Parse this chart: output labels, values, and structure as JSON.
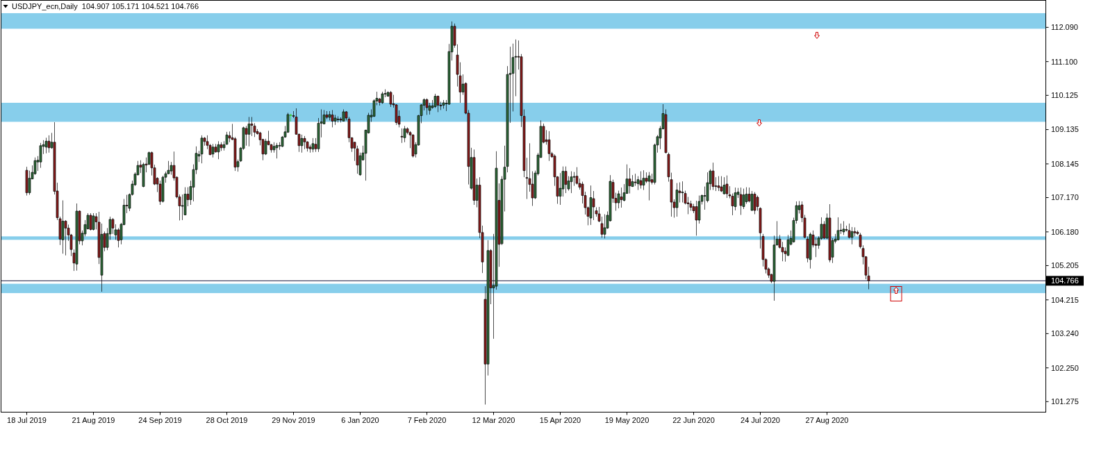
{
  "chart_data": {
    "type": "candlestick",
    "title": "USDJPY_ecn,Daily  104.907 105.171 104.521 104.766",
    "categories": [
      "18 Jul 2019",
      null,
      null,
      null,
      null,
      null,
      null,
      null,
      null,
      null,
      null,
      null,
      null,
      null,
      null,
      null,
      null,
      null,
      null,
      null,
      null,
      null,
      null,
      null,
      "21 Aug 2019",
      null,
      null,
      null,
      null,
      null,
      null,
      null,
      null,
      null,
      null,
      null,
      null,
      null,
      null,
      null,
      null,
      null,
      null,
      null,
      null,
      null,
      null,
      null,
      "24 Sep 2019",
      null,
      null,
      null,
      null,
      null,
      null,
      null,
      null,
      null,
      null,
      null,
      null,
      null,
      null,
      null,
      null,
      null,
      null,
      null,
      null,
      null,
      null,
      null,
      "28 Oct 2019",
      null,
      null,
      null,
      null,
      null,
      null,
      null,
      null,
      null,
      null,
      null,
      null,
      null,
      null,
      null,
      null,
      null,
      null,
      null,
      null,
      null,
      null,
      null,
      "29 Nov 2019",
      null,
      null,
      null,
      null,
      null,
      null,
      null,
      null,
      null,
      null,
      null,
      null,
      null,
      null,
      null,
      null,
      null,
      null,
      null,
      null,
      null,
      null,
      null,
      "6 Jan 2020",
      null,
      null,
      null,
      null,
      null,
      null,
      null,
      null,
      null,
      null,
      null,
      null,
      null,
      null,
      null,
      null,
      null,
      null,
      null,
      null,
      null,
      null,
      null,
      "7 Feb 2020",
      null,
      null,
      null,
      null,
      null,
      null,
      null,
      null,
      null,
      null,
      null,
      null,
      null,
      null,
      null,
      null,
      null,
      null,
      null,
      null,
      null,
      null,
      null,
      "12 Mar 2020",
      null,
      null,
      null,
      null,
      null,
      null,
      null,
      null,
      null,
      null,
      null,
      null,
      null,
      null,
      null,
      null,
      null,
      null,
      null,
      null,
      null,
      null,
      null,
      "15 Apr 2020",
      null,
      null,
      null,
      null,
      null,
      null,
      null,
      null,
      null,
      null,
      null,
      null,
      null,
      null,
      null,
      null,
      null,
      null,
      null,
      null,
      null,
      null,
      null,
      "19 May 2020",
      null,
      null,
      null,
      null,
      null,
      null,
      null,
      null,
      null,
      null,
      null,
      null,
      null,
      null,
      null,
      null,
      null,
      null,
      null,
      null,
      null,
      null,
      null,
      "22 Jun 2020",
      null,
      null,
      null,
      null,
      null,
      null,
      null,
      null,
      null,
      null,
      null,
      null,
      null,
      null,
      null,
      null,
      null,
      null,
      null,
      null,
      null,
      null,
      null,
      "24 Jul 2020",
      null,
      null,
      null,
      null,
      null,
      null,
      null,
      null,
      null,
      null,
      null,
      null,
      null,
      null,
      null,
      null,
      null,
      null,
      null,
      null,
      null,
      null,
      null,
      "27 Aug 2020",
      null,
      null,
      null,
      null,
      null,
      null,
      null,
      null,
      null,
      null,
      null,
      null,
      null,
      null,
      null,
      null,
      null,
      null,
      null,
      null,
      null,
      null,
      null,
      null,
      null,
      null,
      null,
      null,
      null,
      null,
      null,
      null,
      null,
      null,
      null,
      null,
      null,
      null,
      null,
      null,
      null,
      null,
      null,
      null,
      null,
      null,
      null,
      null,
      null,
      null,
      null,
      null,
      null,
      null,
      null,
      null,
      null,
      null,
      null,
      null,
      null,
      null,
      null,
      null,
      null,
      null,
      null,
      null,
      null,
      null,
      null,
      null,
      null,
      null,
      null,
      null,
      null,
      null
    ],
    "ohlc": [
      [
        107.96,
        108.06,
        107.23,
        107.31
      ],
      [
        107.31,
        107.95,
        107.25,
        107.73
      ],
      [
        107.71,
        108.1,
        107.7,
        107.9
      ],
      [
        107.86,
        108.33,
        107.83,
        108.24
      ],
      [
        108.2,
        108.37,
        107.94,
        108.25
      ],
      [
        108.2,
        108.75,
        108.03,
        108.67
      ],
      [
        108.65,
        108.83,
        108.43,
        108.7
      ],
      [
        108.63,
        108.9,
        108.45,
        108.8
      ],
      [
        108.8,
        108.97,
        108.47,
        108.61
      ],
      [
        108.61,
        109.04,
        108.58,
        108.77
      ],
      [
        108.77,
        109.35,
        107.26,
        107.35
      ],
      [
        107.36,
        107.6,
        106.52,
        106.59
      ],
      [
        106.56,
        106.62,
        105.8,
        105.97
      ],
      [
        105.95,
        107.09,
        105.55,
        106.49
      ],
      [
        106.49,
        106.52,
        105.5,
        106.29
      ],
      [
        106.29,
        106.39,
        105.92,
        106.09
      ],
      [
        106.09,
        106.12,
        105.48,
        105.67
      ],
      [
        105.57,
        105.67,
        105.05,
        105.28
      ],
      [
        105.25,
        107.0,
        105.06,
        106.78
      ],
      [
        106.78,
        106.8,
        105.82,
        105.92
      ],
      [
        105.92,
        106.22,
        105.79,
        106.14
      ],
      [
        106.12,
        106.52,
        106.05,
        106.39
      ],
      [
        106.27,
        106.72,
        106.25,
        106.66
      ],
      [
        106.66,
        106.72,
        106.22,
        106.25
      ],
      [
        106.25,
        106.72,
        106.22,
        106.64
      ],
      [
        106.62,
        106.72,
        106.25,
        106.47
      ],
      [
        106.46,
        106.76,
        105.25,
        105.44
      ],
      [
        104.93,
        106.42,
        104.45,
        106.11
      ],
      [
        106.13,
        106.19,
        105.62,
        105.73
      ],
      [
        105.73,
        106.29,
        105.65,
        106.13
      ],
      [
        106.12,
        106.62,
        105.95,
        106.54
      ],
      [
        106.54,
        106.58,
        106.12,
        106.29
      ],
      [
        106.09,
        106.4,
        105.95,
        106.24
      ],
      [
        106.24,
        106.29,
        105.73,
        105.93
      ],
      [
        105.95,
        106.44,
        105.82,
        106.4
      ],
      [
        106.39,
        107.13,
        106.37,
        106.95
      ],
      [
        106.95,
        107.25,
        106.72,
        106.93
      ],
      [
        106.86,
        107.29,
        106.78,
        107.26
      ],
      [
        107.26,
        107.66,
        107.23,
        107.56
      ],
      [
        107.54,
        107.9,
        107.51,
        107.85
      ],
      [
        107.83,
        108.23,
        107.81,
        108.1
      ],
      [
        108.11,
        108.25,
        107.88,
        108.05
      ],
      [
        107.49,
        108.18,
        107.47,
        108.13
      ],
      [
        108.14,
        108.33,
        107.9,
        108.11
      ],
      [
        108.13,
        108.5,
        108.12,
        108.47
      ],
      [
        108.47,
        108.5,
        107.81,
        108.03
      ],
      [
        108.03,
        108.12,
        107.53,
        107.56
      ],
      [
        107.73,
        107.76,
        107.33,
        107.56
      ],
      [
        107.56,
        107.66,
        106.96,
        107.06
      ],
      [
        107.06,
        107.8,
        107.03,
        107.76
      ],
      [
        107.76,
        107.92,
        107.6,
        107.86
      ],
      [
        107.86,
        108.23,
        107.85,
        107.96
      ],
      [
        107.94,
        108.2,
        107.83,
        108.1
      ],
      [
        108.1,
        108.5,
        107.66,
        107.74
      ],
      [
        107.76,
        107.78,
        107.15,
        107.19
      ],
      [
        107.19,
        107.26,
        106.51,
        106.93
      ],
      [
        106.93,
        107.26,
        106.52,
        106.94
      ],
      [
        106.67,
        107.47,
        106.66,
        107.27
      ],
      [
        107.27,
        107.47,
        106.92,
        107.11
      ],
      [
        107.11,
        107.66,
        106.96,
        107.49
      ],
      [
        107.47,
        108.13,
        107.06,
        107.98
      ],
      [
        107.98,
        108.65,
        107.85,
        108.45
      ],
      [
        108.37,
        108.52,
        108.2,
        108.42
      ],
      [
        108.43,
        108.97,
        108.16,
        108.89
      ],
      [
        108.89,
        108.92,
        108.67,
        108.79
      ],
      [
        108.79,
        108.97,
        108.57,
        108.68
      ],
      [
        108.68,
        108.72,
        108.4,
        108.41
      ],
      [
        108.43,
        108.72,
        108.33,
        108.63
      ],
      [
        108.63,
        108.72,
        108.47,
        108.49
      ],
      [
        108.49,
        108.8,
        108.28,
        108.7
      ],
      [
        108.7,
        108.77,
        108.52,
        108.61
      ],
      [
        108.61,
        108.8,
        108.53,
        108.7
      ],
      [
        108.71,
        109.07,
        108.7,
        108.98
      ],
      [
        108.96,
        109.08,
        108.77,
        108.89
      ],
      [
        108.9,
        109.3,
        108.83,
        108.85
      ],
      [
        108.87,
        108.92,
        107.94,
        108.05
      ],
      [
        108.06,
        108.27,
        107.92,
        108.21
      ],
      [
        108.23,
        108.63,
        108.2,
        108.6
      ],
      [
        108.59,
        109.22,
        108.55,
        109.19
      ],
      [
        109.17,
        109.24,
        108.67,
        109.0
      ],
      [
        109.0,
        109.5,
        108.65,
        109.3
      ],
      [
        109.3,
        109.5,
        108.95,
        109.26
      ],
      [
        109.24,
        109.32,
        108.92,
        109.06
      ],
      [
        109.08,
        109.15,
        108.99,
        109.02
      ],
      [
        109.04,
        109.07,
        108.68,
        108.84
      ],
      [
        108.85,
        108.87,
        108.25,
        108.43
      ],
      [
        108.43,
        108.87,
        108.4,
        108.8
      ],
      [
        108.8,
        109.1,
        108.68,
        108.7
      ],
      [
        108.7,
        108.72,
        108.47,
        108.55
      ],
      [
        108.55,
        108.77,
        108.47,
        108.65
      ],
      [
        108.61,
        108.75,
        108.3,
        108.68
      ],
      [
        108.67,
        108.77,
        108.55,
        108.68
      ],
      [
        108.65,
        108.95,
        108.63,
        108.92
      ],
      [
        108.92,
        109.24,
        108.9,
        109.07
      ],
      [
        109.06,
        109.62,
        109.04,
        109.57
      ],
      [
        109.56,
        109.59,
        109.37,
        109.56
      ],
      [
        109.54,
        109.67,
        109.47,
        109.52
      ],
      [
        109.5,
        109.75,
        108.99,
        109.0
      ],
      [
        109.0,
        109.02,
        108.49,
        108.67
      ],
      [
        108.67,
        108.99,
        108.47,
        108.88
      ],
      [
        108.88,
        108.95,
        108.57,
        108.78
      ],
      [
        108.78,
        108.8,
        108.5,
        108.6
      ],
      [
        108.63,
        108.7,
        108.47,
        108.58
      ],
      [
        108.57,
        108.89,
        108.48,
        108.73
      ],
      [
        108.71,
        108.89,
        108.49,
        108.58
      ],
      [
        108.58,
        109.47,
        108.49,
        109.32
      ],
      [
        109.32,
        109.72,
        108.91,
        109.36
      ],
      [
        109.3,
        109.7,
        109.29,
        109.56
      ],
      [
        109.56,
        109.67,
        109.44,
        109.49
      ],
      [
        109.49,
        109.67,
        109.4,
        109.57
      ],
      [
        109.56,
        109.7,
        109.2,
        109.38
      ],
      [
        109.38,
        109.56,
        109.27,
        109.47
      ],
      [
        109.43,
        109.52,
        109.34,
        109.44
      ],
      [
        109.44,
        109.49,
        109.34,
        109.41
      ],
      [
        109.38,
        109.72,
        109.37,
        109.65
      ],
      [
        109.65,
        109.67,
        109.4,
        109.47
      ],
      [
        109.44,
        109.5,
        108.77,
        108.9
      ],
      [
        108.9,
        108.91,
        108.49,
        108.6
      ],
      [
        108.77,
        108.78,
        108.23,
        108.6
      ],
      [
        108.58,
        108.67,
        107.86,
        108.11
      ],
      [
        107.83,
        108.47,
        107.8,
        108.38
      ],
      [
        108.26,
        108.67,
        108.24,
        108.46
      ],
      [
        108.45,
        109.13,
        107.66,
        109.12
      ],
      [
        109.04,
        109.62,
        109.02,
        109.55
      ],
      [
        109.5,
        109.72,
        109.36,
        109.55
      ],
      [
        109.52,
        110.01,
        109.5,
        109.97
      ],
      [
        109.96,
        110.23,
        109.84,
        110.04
      ],
      [
        110.02,
        110.05,
        109.83,
        109.92
      ],
      [
        109.91,
        110.23,
        109.88,
        110.17
      ],
      [
        110.16,
        110.3,
        110.07,
        110.18
      ],
      [
        110.1,
        110.24,
        110.09,
        110.21
      ],
      [
        110.21,
        110.25,
        109.79,
        109.87
      ],
      [
        109.88,
        110.14,
        109.77,
        109.85
      ],
      [
        109.85,
        109.87,
        109.27,
        109.34
      ],
      [
        109.52,
        109.69,
        109.2,
        109.29
      ],
      [
        108.94,
        109.17,
        108.75,
        108.93
      ],
      [
        108.9,
        109.24,
        108.77,
        109.16
      ],
      [
        109.16,
        109.2,
        109.0,
        109.05
      ],
      [
        109.05,
        109.09,
        108.6,
        108.98
      ],
      [
        108.98,
        109.0,
        108.33,
        108.37
      ],
      [
        108.43,
        108.77,
        108.33,
        108.7
      ],
      [
        108.69,
        109.56,
        108.67,
        109.54
      ],
      [
        109.54,
        109.87,
        109.32,
        109.85
      ],
      [
        109.84,
        110.04,
        109.69,
        110.0
      ],
      [
        110.0,
        110.04,
        109.56,
        109.77
      ],
      [
        109.69,
        109.91,
        109.57,
        109.82
      ],
      [
        109.77,
        109.99,
        109.74,
        109.82
      ],
      [
        109.8,
        110.17,
        109.76,
        110.1
      ],
      [
        110.1,
        110.12,
        109.64,
        109.84
      ],
      [
        109.84,
        109.94,
        109.7,
        109.82
      ],
      [
        109.84,
        109.99,
        109.74,
        109.91
      ],
      [
        109.89,
        109.99,
        109.67,
        109.9
      ],
      [
        109.87,
        111.61,
        109.85,
        111.39
      ],
      [
        111.38,
        112.26,
        111.13,
        112.12
      ],
      [
        112.12,
        112.2,
        111.5,
        111.57
      ],
      [
        111.29,
        111.6,
        110.38,
        110.73
      ],
      [
        110.69,
        111.08,
        109.91,
        110.22
      ],
      [
        110.22,
        110.73,
        110.14,
        110.45
      ],
      [
        110.47,
        110.5,
        109.58,
        109.61
      ],
      [
        109.61,
        109.7,
        107.55,
        108.07
      ],
      [
        107.44,
        108.61,
        107.4,
        108.33
      ],
      [
        108.33,
        108.56,
        106.96,
        107.09
      ],
      [
        107.09,
        107.72,
        106.89,
        107.53
      ],
      [
        107.53,
        107.76,
        106.0,
        106.16
      ],
      [
        106.16,
        106.36,
        104.99,
        105.31
      ],
      [
        104.23,
        104.61,
        101.19,
        102.36
      ],
      [
        102.36,
        105.94,
        102.03,
        105.64
      ],
      [
        105.64,
        105.68,
        104.09,
        104.56
      ],
      [
        104.56,
        106.12,
        103.09,
        104.63
      ],
      [
        104.61,
        108.51,
        104.51,
        108.02
      ],
      [
        107.09,
        107.58,
        105.17,
        105.82
      ],
      [
        105.84,
        107.79,
        105.8,
        107.7
      ],
      [
        107.7,
        108.67,
        106.77,
        108.05
      ],
      [
        108.07,
        110.97,
        107.9,
        110.73
      ],
      [
        110.73,
        111.53,
        109.33,
        110.76
      ],
      [
        110.76,
        111.62,
        109.66,
        111.22
      ],
      [
        111.24,
        111.74,
        110.1,
        111.25
      ],
      [
        111.25,
        111.71,
        110.87,
        111.23
      ],
      [
        111.24,
        111.32,
        109.21,
        109.54
      ],
      [
        109.52,
        109.72,
        107.76,
        107.95
      ],
      [
        107.75,
        108.32,
        107.13,
        107.74
      ],
      [
        107.72,
        108.74,
        107.34,
        107.55
      ],
      [
        107.56,
        107.93,
        106.93,
        107.16
      ],
      [
        107.16,
        107.95,
        107.13,
        107.88
      ],
      [
        107.86,
        108.46,
        107.81,
        108.4
      ],
      [
        108.33,
        109.4,
        108.32,
        109.23
      ],
      [
        109.23,
        109.31,
        108.74,
        108.77
      ],
      [
        108.84,
        109.12,
        108.7,
        108.79
      ],
      [
        108.84,
        109.09,
        108.23,
        108.44
      ],
      [
        108.44,
        108.49,
        108.32,
        108.35
      ],
      [
        108.37,
        108.42,
        107.51,
        107.77
      ],
      [
        107.77,
        107.79,
        106.99,
        107.21
      ],
      [
        107.21,
        107.88,
        106.96,
        107.44
      ],
      [
        107.42,
        108.07,
        107.2,
        107.93
      ],
      [
        107.93,
        108.07,
        107.3,
        107.55
      ],
      [
        107.42,
        107.79,
        107.37,
        107.65
      ],
      [
        107.63,
        107.93,
        107.3,
        107.77
      ],
      [
        107.77,
        107.91,
        107.51,
        107.78
      ],
      [
        107.79,
        108.05,
        107.55,
        107.58
      ],
      [
        107.58,
        107.72,
        107.4,
        107.47
      ],
      [
        107.56,
        107.63,
        107.0,
        107.23
      ],
      [
        107.23,
        107.34,
        106.68,
        106.88
      ],
      [
        106.88,
        106.91,
        106.37,
        106.63
      ],
      [
        106.58,
        107.52,
        106.38,
        107.17
      ],
      [
        107.14,
        107.36,
        106.52,
        106.9
      ],
      [
        106.79,
        106.89,
        106.62,
        106.7
      ],
      [
        106.7,
        106.9,
        106.46,
        106.49
      ],
      [
        106.42,
        106.62,
        106.01,
        106.11
      ],
      [
        106.11,
        106.69,
        105.99,
        106.3
      ],
      [
        106.29,
        106.77,
        106.27,
        106.66
      ],
      [
        106.5,
        107.82,
        106.48,
        107.64
      ],
      [
        107.61,
        107.69,
        107.02,
        107.15
      ],
      [
        107.15,
        107.31,
        106.79,
        107.02
      ],
      [
        107.02,
        107.37,
        106.86,
        107.28
      ],
      [
        107.19,
        107.46,
        106.88,
        107.11
      ],
      [
        107.09,
        107.56,
        107.06,
        107.31
      ],
      [
        107.29,
        108.13,
        107.28,
        107.71
      ],
      [
        107.71,
        108.02,
        107.29,
        107.51
      ],
      [
        107.49,
        107.82,
        107.48,
        107.63
      ],
      [
        107.62,
        107.86,
        107.51,
        107.61
      ],
      [
        107.57,
        107.79,
        107.39,
        107.69
      ],
      [
        107.66,
        107.93,
        107.43,
        107.53
      ],
      [
        107.53,
        107.96,
        107.39,
        107.73
      ],
      [
        107.73,
        107.9,
        107.59,
        107.64
      ],
      [
        107.64,
        107.91,
        107.09,
        107.8
      ],
      [
        107.69,
        107.86,
        107.55,
        107.61
      ],
      [
        107.61,
        108.73,
        107.55,
        108.69
      ],
      [
        108.69,
        108.98,
        108.47,
        108.93
      ],
      [
        108.89,
        109.24,
        108.57,
        109.17
      ],
      [
        109.16,
        109.87,
        109.14,
        109.6
      ],
      [
        109.57,
        109.72,
        108.45,
        108.47
      ],
      [
        108.42,
        108.47,
        107.63,
        107.77
      ],
      [
        107.69,
        107.89,
        106.62,
        107.04
      ],
      [
        107.04,
        107.12,
        106.59,
        106.88
      ],
      [
        106.88,
        107.59,
        106.62,
        107.39
      ],
      [
        107.36,
        107.61,
        107.03,
        107.31
      ],
      [
        107.32,
        107.64,
        107.03,
        107.33
      ],
      [
        107.29,
        107.37,
        106.97,
        107.01
      ],
      [
        107.02,
        107.19,
        106.69,
        106.99
      ],
      [
        106.99,
        107.08,
        106.79,
        106.89
      ],
      [
        106.91,
        106.99,
        106.72,
        106.79
      ],
      [
        106.91,
        107.08,
        106.07,
        106.52
      ],
      [
        106.52,
        107.23,
        106.42,
        107.06
      ],
      [
        107.06,
        107.26,
        106.97,
        107.23
      ],
      [
        107.22,
        107.49,
        106.82,
        107.23
      ],
      [
        107.08,
        107.9,
        107.03,
        107.6
      ],
      [
        107.57,
        107.99,
        107.39,
        107.94
      ],
      [
        107.94,
        108.18,
        107.39,
        107.49
      ],
      [
        107.51,
        107.76,
        107.36,
        107.5
      ],
      [
        107.51,
        107.79,
        107.36,
        107.46
      ],
      [
        107.48,
        107.79,
        107.33,
        107.36
      ],
      [
        107.28,
        107.76,
        107.26,
        107.53
      ],
      [
        107.56,
        107.81,
        107.16,
        107.28
      ],
      [
        107.25,
        107.5,
        107.15,
        107.22
      ],
      [
        107.21,
        107.29,
        106.66,
        106.93
      ],
      [
        106.91,
        107.46,
        106.8,
        107.31
      ],
      [
        107.26,
        107.45,
        107.16,
        107.33
      ],
      [
        107.26,
        107.46,
        106.67,
        106.94
      ],
      [
        106.91,
        107.43,
        106.84,
        107.25
      ],
      [
        107.05,
        107.47,
        106.99,
        107.27
      ],
      [
        107.27,
        107.46,
        107.03,
        107.07
      ],
      [
        106.8,
        107.36,
        106.79,
        107.27
      ],
      [
        107.27,
        107.33,
        106.69,
        106.8
      ],
      [
        107.18,
        107.23,
        106.79,
        106.91
      ],
      [
        106.86,
        106.89,
        105.7,
        106.15
      ],
      [
        106.05,
        106.12,
        105.18,
        105.38
      ],
      [
        105.38,
        105.42,
        104.98,
        105.1
      ],
      [
        105.11,
        105.15,
        104.85,
        104.93
      ],
      [
        104.95,
        104.97,
        104.7,
        104.75
      ],
      [
        104.75,
        106.07,
        104.19,
        105.8
      ],
      [
        105.8,
        106.49,
        105.79,
        105.97
      ],
      [
        105.97,
        106.09,
        105.7,
        105.73
      ],
      [
        105.73,
        105.89,
        105.33,
        105.6
      ],
      [
        105.62,
        105.73,
        105.32,
        105.55
      ],
      [
        105.5,
        106.09,
        105.48,
        105.95
      ],
      [
        105.82,
        106.22,
        105.79,
        105.99
      ],
      [
        105.89,
        106.59,
        105.87,
        106.51
      ],
      [
        106.51,
        107.06,
        106.42,
        106.94
      ],
      [
        106.82,
        107.07,
        106.71,
        106.94
      ],
      [
        106.96,
        107.06,
        106.46,
        106.59
      ],
      [
        106.58,
        106.67,
        106.0,
        106.02
      ],
      [
        105.97,
        106.05,
        105.3,
        105.42
      ],
      [
        105.38,
        106.16,
        105.12,
        106.11
      ],
      [
        106.09,
        106.22,
        105.73,
        105.8
      ],
      [
        105.82,
        106.02,
        105.45,
        105.79
      ],
      [
        105.79,
        106.05,
        105.69,
        106.0
      ],
      [
        105.99,
        106.6,
        105.95,
        106.4
      ],
      [
        106.4,
        106.49,
        105.97,
        106.0
      ],
      [
        106.0,
        106.71,
        105.97,
        106.58
      ],
      [
        106.58,
        106.98,
        105.3,
        105.37
      ],
      [
        105.45,
        106.0,
        105.28,
        105.93
      ],
      [
        105.91,
        106.12,
        105.85,
        105.97
      ],
      [
        105.95,
        106.6,
        105.93,
        106.22
      ],
      [
        106.22,
        106.42,
        106.12,
        106.23
      ],
      [
        106.18,
        106.49,
        106.09,
        106.26
      ],
      [
        106.25,
        106.36,
        106.19,
        106.24
      ],
      [
        106.22,
        106.42,
        105.99,
        106.02
      ],
      [
        106.02,
        106.32,
        105.82,
        106.19
      ],
      [
        106.19,
        106.31,
        106.05,
        106.15
      ],
      [
        106.17,
        106.22,
        106.09,
        106.13
      ],
      [
        106.09,
        106.15,
        105.7,
        105.75
      ],
      [
        105.7,
        105.79,
        105.24,
        105.46
      ],
      [
        105.46,
        105.48,
        104.81,
        104.93
      ],
      [
        104.907,
        105.171,
        104.521,
        104.766
      ],
      null,
      null,
      null,
      null,
      null,
      null,
      null,
      null,
      null,
      null,
      null,
      null,
      null,
      null,
      null,
      null,
      null,
      null,
      null,
      null,
      null,
      null,
      null,
      null,
      null,
      null,
      null,
      null,
      null,
      null,
      null,
      null,
      null,
      null,
      null,
      null,
      null,
      null,
      null,
      null,
      null,
      null,
      null,
      null,
      null,
      null,
      null,
      null,
      null,
      null,
      null,
      null,
      null,
      null,
      null,
      null,
      null,
      null,
      null,
      null,
      null,
      null,
      null
    ],
    "colors": [
      "#8b1c1c",
      "#2e6b3a",
      "#2e6b3a",
      "#2e6b3a",
      "#2e6b3a",
      "#2e6b3a",
      "#2e6b3a",
      "#2e6b3a",
      "#8b1c1c",
      "#2e6b3a",
      "#8b1c1c",
      "#8b1c1c",
      "#8b1c1c",
      "#2e6b3a",
      "#8b1c1c",
      "#8b1c1c",
      "#8b1c1c",
      "#8b1c1c",
      "#2e6b3a",
      "#8b1c1c",
      "#2e6b3a",
      "#2e6b3a",
      "#2e6b3a",
      "#8b1c1c",
      "#2e6b3a",
      "#8b1c1c",
      "#8b1c1c",
      "#2e6b3a",
      "#8b1c1c",
      "#2e6b3a",
      "#2e6b3a",
      "#8b1c1c",
      "#2e6b3a",
      "#8b1c1c",
      "#2e6b3a",
      "#2e6b3a",
      "#8b1c1c",
      "#2e6b3a",
      "#2e6b3a",
      "#2e6b3a",
      "#2e6b3a",
      "#8b1c1c",
      "#2e6b3a",
      "#8b1c1c",
      "#2e6b3a",
      "#8b1c1c",
      "#8b1c1c",
      "#8b1c1c",
      "#8b1c1c",
      "#2e6b3a",
      "#2e6b3a",
      "#2e6b3a",
      "#2e6b3a",
      "#8b1c1c",
      "#8b1c1c",
      "#8b1c1c",
      "#2e6b3a",
      "#2e6b3a",
      "#8b1c1c",
      "#2e6b3a",
      "#2e6b3a",
      "#2e6b3a",
      "#2e6b3a",
      "#2e6b3a",
      "#8b1c1c",
      "#8b1c1c",
      "#8b1c1c",
      "#2e6b3a",
      "#8b1c1c",
      "#2e6b3a",
      "#8b1c1c",
      "#2e6b3a",
      "#2e6b3a",
      "#8b1c1c",
      "#8b1c1c",
      "#8b1c1c",
      "#2e6b3a",
      "#2e6b3a",
      "#2e6b3a",
      "#8b1c1c",
      "#2e6b3a",
      "#8b1c1c",
      "#8b1c1c",
      "#8b1c1c",
      "#8b1c1c",
      "#8b1c1c",
      "#2e6b3a",
      "#8b1c1c",
      "#8b1c1c",
      "#2e6b3a",
      "#2e6b3a",
      "#2e6b3a",
      "#2e6b3a",
      "#2e6b3a",
      "#2e6b3a",
      "#32cd32",
      "#8b1c1c",
      "#8b1c1c",
      "#8b1c1c",
      "#2e6b3a",
      "#8b1c1c",
      "#8b1c1c",
      "#8b1c1c",
      "#2e6b3a",
      "#8b1c1c",
      "#2e6b3a",
      "#2e6b3a",
      "#2e6b3a",
      "#8b1c1c",
      "#2e6b3a",
      "#8b1c1c",
      "#2e6b3a",
      "#2e6b3a",
      "#8b1c1c",
      "#2e6b3a",
      "#8b1c1c",
      "#8b1c1c",
      "#8b1c1c",
      "#8b1c1c",
      "#8b1c1c",
      "#2e6b3a",
      "#2e6b3a",
      "#2e6b3a",
      "#2e6b3a",
      "#2e6b3a",
      "#2e6b3a",
      "#2e6b3a",
      "#8b1c1c",
      "#2e6b3a",
      "#2e6b3a",
      "#2e6b3a",
      "#8b1c1c",
      "#8b1c1c",
      "#8b1c1c",
      "#8b1c1c",
      "#8b1c1c",
      "#2e6b3a",
      "#8b1c1c",
      "#8b1c1c",
      "#8b1c1c",
      "#2e6b3a",
      "#2e6b3a",
      "#2e6b3a",
      "#2e6b3a",
      "#8b1c1c",
      "#2e6b3a",
      "#2e6b3a",
      "#2e6b3a",
      "#8b1c1c",
      "#8b1c1c",
      "#2e6b3a",
      "#2e6b3a",
      "#2e6b3a",
      "#2e6b3a",
      "#8b1c1c",
      "#8b1c1c",
      "#8b1c1c",
      "#2e6b3a",
      "#8b1c1c",
      "#8b1c1c",
      "#2e6b3a",
      "#8b1c1c",
      "#2e6b3a",
      "#8b1c1c",
      "#8b1c1c",
      "#8b1c1c",
      "#2e6b3a",
      "#8b1c1c",
      "#2e6b3a",
      "#2e6b3a",
      "#8b1c1c",
      "#2e6b3a",
      "#2e6b3a",
      "#2e6b3a",
      "#2e6b3a",
      "#2e6b3a",
      "#2e6b3a",
      "#8b1c1c",
      "#8b1c1c",
      "#8b1c1c",
      "#8b1c1c",
      "#8b1c1c",
      "#8b1c1c",
      "#2e6b3a",
      "#2e6b3a",
      "#2e6b3a",
      "#8b1c1c",
      "#8b1c1c",
      "#8b1c1c",
      "#8b1c1c",
      "#8b1c1c",
      "#8b1c1c",
      "#2e6b3a",
      "#2e6b3a",
      "#8b1c1c",
      "#2e6b3a",
      "#2e6b3a",
      "#2e6b3a",
      "#8b1c1c",
      "#8b1c1c",
      "#8b1c1c",
      "#8b1c1c",
      "#8b1c1c",
      "#2e6b3a",
      "#8b1c1c",
      "#8b1c1c",
      "#8b1c1c",
      "#8b1c1c",
      "#2e6b3a",
      "#2e6b3a",
      "#2e6b3a",
      "#8b1c1c",
      "#8b1c1c",
      "#2e6b3a",
      "#8b1c1c",
      "#2e6b3a",
      "#2e6b3a",
      "#8b1c1c",
      "#2e6b3a",
      "#8b1c1c",
      "#2e6b3a",
      "#8b1c1c",
      "#2e6b3a",
      "#8b1c1c",
      "#2e6b3a",
      "#8b1c1c",
      "#2e6b3a",
      "#2e6b3a",
      "#2e6b3a",
      "#2e6b3a",
      "#8b1c1c",
      "#8b1c1c",
      "#8b1c1c",
      "#8b1c1c",
      "#2e6b3a",
      "#8b1c1c",
      "#2e6b3a",
      "#8b1c1c",
      "#8b1c1c",
      "#8b1c1c",
      "#8b1c1c",
      "#8b1c1c",
      "#2e6b3a",
      "#2e6b3a",
      "#2e6b3a",
      "#2e6b3a",
      "#2e6b3a",
      "#8b1c1c",
      "#8b1c1c",
      "#8b1c1c",
      "#8b1c1c",
      "#2e6b3a",
      "#8b1c1c",
      "#8b1c1c",
      "#8b1c1c",
      "#2e6b3a",
      "#2e6b3a",
      "#8b1c1c",
      "#2e6b3a",
      "#2e6b3a",
      "#8b1c1c",
      "#2e6b3a",
      "#8b1c1c",
      "#8b1c1c",
      "#8b1c1c",
      "#8b1c1c",
      "#8b1c1c",
      "#8b1c1c",
      "#8b1c1c",
      "#2e6b3a",
      "#2e6b3a",
      "#8b1c1c",
      "#8b1c1c",
      "#8b1c1c",
      "#2e6b3a",
      "#2e6b3a",
      "#2e6b3a",
      "#2e6b3a",
      "#2e6b3a",
      "#8b1c1c",
      "#8b1c1c",
      "#8b1c1c",
      "#2e6b3a",
      "#8b1c1c",
      "#8b1c1c",
      "#2e6b3a",
      "#2e6b3a",
      "#8b1c1c",
      "#2e6b3a",
      "#8b1c1c",
      "#2e6b3a",
      "#2e6b3a",
      "#2e6b3a",
      "#2e6b3a",
      "#2e6b3a",
      "#8b1c1c",
      "#8b1c1c",
      "#2e6b3a",
      "#8b1c1c",
      "#8b1c1c",
      "#8b1c1c",
      "#8b1c1c",
      "#8b1c1c",
      "#8b1c1c",
      null,
      null,
      null,
      null,
      null,
      null,
      null,
      null,
      null,
      null,
      null,
      null,
      null,
      null,
      null,
      null,
      null,
      null,
      null,
      null,
      null,
      null,
      null,
      null,
      null,
      null,
      null,
      null,
      null,
      null,
      null,
      null,
      null,
      null,
      null,
      null,
      null,
      null,
      null,
      null,
      null,
      null,
      null,
      null,
      null,
      null,
      null,
      null,
      null,
      null,
      null,
      null,
      null,
      null,
      null,
      null,
      null,
      null,
      null,
      null,
      null,
      null,
      null
    ],
    "ylim": [
      100.97,
      112.87
    ],
    "yticks": [
      {
        "value": 112.09,
        "label": "112.090"
      },
      {
        "value": 111.1,
        "label": "111.100"
      },
      {
        "value": 110.125,
        "label": "110.125"
      },
      {
        "value": 109.135,
        "label": "109.135"
      },
      {
        "value": 108.145,
        "label": "108.145"
      },
      {
        "value": 107.17,
        "label": "107.170"
      },
      {
        "value": 106.18,
        "label": "106.180"
      },
      {
        "value": 105.205,
        "label": "105.205"
      },
      {
        "value": 104.215,
        "label": "104.215"
      },
      {
        "value": 103.24,
        "label": "103.240"
      },
      {
        "value": 102.25,
        "label": "102.250"
      },
      {
        "value": 101.275,
        "label": "101.275"
      }
    ],
    "bands": [
      {
        "axis": "y",
        "from": 112.05,
        "to": 112.5,
        "color": "#87ceeb"
      },
      {
        "axis": "y",
        "from": 109.36,
        "to": 109.91,
        "color": "#87ceeb"
      },
      {
        "axis": "y",
        "from": 105.95,
        "to": 106.05,
        "color": "#87ceeb"
      },
      {
        "axis": "y",
        "from": 104.41,
        "to": 104.68,
        "color": "#87ceeb"
      }
    ],
    "ref_lines": [
      {
        "axis": "y",
        "value": 104.766,
        "label": "104.766",
        "color": "#1a1a40"
      }
    ]
  }
}
